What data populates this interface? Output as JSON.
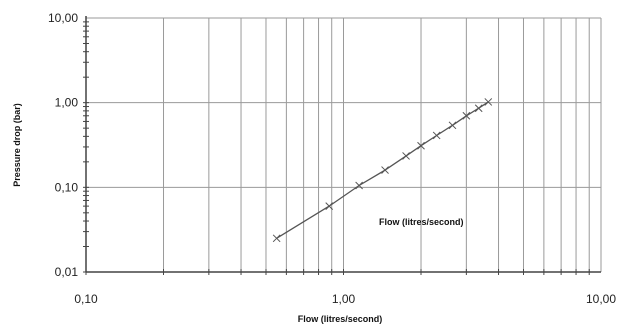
{
  "chart_data": {
    "type": "line",
    "title": "",
    "xlabel": "Flow (litres/second)",
    "ylabel": "Pressure drop (bar)",
    "x_scale": "log",
    "y_scale": "log",
    "xlim": [
      0.1,
      10
    ],
    "ylim": [
      0.01,
      10
    ],
    "x_ticks": [
      {
        "value": 0.1,
        "label": "0,10"
      },
      {
        "value": 1,
        "label": "1,00"
      },
      {
        "value": 10,
        "label": "10,00"
      }
    ],
    "y_ticks": [
      {
        "value": 0.01,
        "label": "0,01"
      },
      {
        "value": 0.1,
        "label": "0,10"
      },
      {
        "value": 1,
        "label": "1,00"
      },
      {
        "value": 10,
        "label": "10,00"
      }
    ],
    "grid": true,
    "annotation": "Flow (litres/second)",
    "series": [
      {
        "x": [
          0.55,
          0.88,
          1.15,
          1.45,
          1.75,
          2.0,
          2.3,
          2.65,
          3.0,
          3.35,
          3.65
        ],
        "y": [
          0.025,
          0.06,
          0.105,
          0.16,
          0.235,
          0.31,
          0.41,
          0.54,
          0.7,
          0.86,
          1.02
        ]
      }
    ],
    "colors": {
      "line": "#555555",
      "grid": "#9a9a9a",
      "axis": "#444444"
    }
  }
}
